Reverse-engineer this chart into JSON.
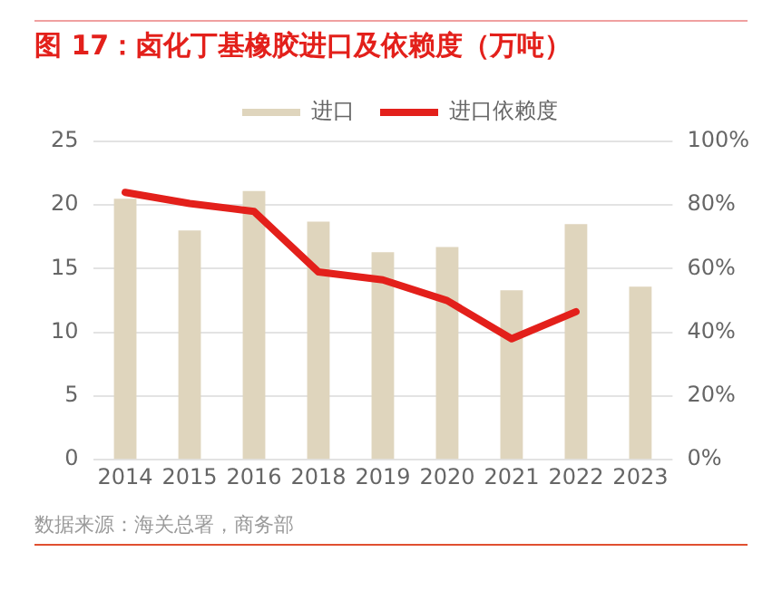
{
  "chart_data": {
    "type": "bar",
    "title": "图 17：卤化丁基橡胶进口及依赖度（万吨）",
    "categories": [
      "2014",
      "2015",
      "2016",
      "2018",
      "2019",
      "2020",
      "2021",
      "2022",
      "2023"
    ],
    "series": [
      {
        "name": "进口",
        "color": "#dfd5bd",
        "values": [
          20.5,
          18,
          21.1,
          18.7,
          16.3,
          16.7,
          13.3,
          18.5,
          13.6
        ]
      },
      {
        "name": "进口依赖度",
        "type": "line",
        "axis": "y2",
        "color": "#e3201b",
        "values": [
          84,
          80.5,
          78,
          59,
          56.5,
          50,
          38,
          46.5,
          null
        ]
      }
    ],
    "ylim": [
      0,
      25
    ],
    "yticks": [
      0,
      5,
      10,
      15,
      20,
      25
    ],
    "y2lim": [
      0,
      100
    ],
    "y2ticks": [
      {
        "value": 0,
        "label": "0%"
      },
      {
        "value": 20,
        "label": "20%"
      },
      {
        "value": 40,
        "label": "40%"
      },
      {
        "value": 60,
        "label": "60%"
      },
      {
        "value": 80,
        "label": "80%"
      },
      {
        "value": 100,
        "label": "100%"
      }
    ],
    "grid": "y",
    "legend": "top",
    "marker": "none",
    "annotations": [
      "数据来源：海关总署，商务部"
    ]
  }
}
